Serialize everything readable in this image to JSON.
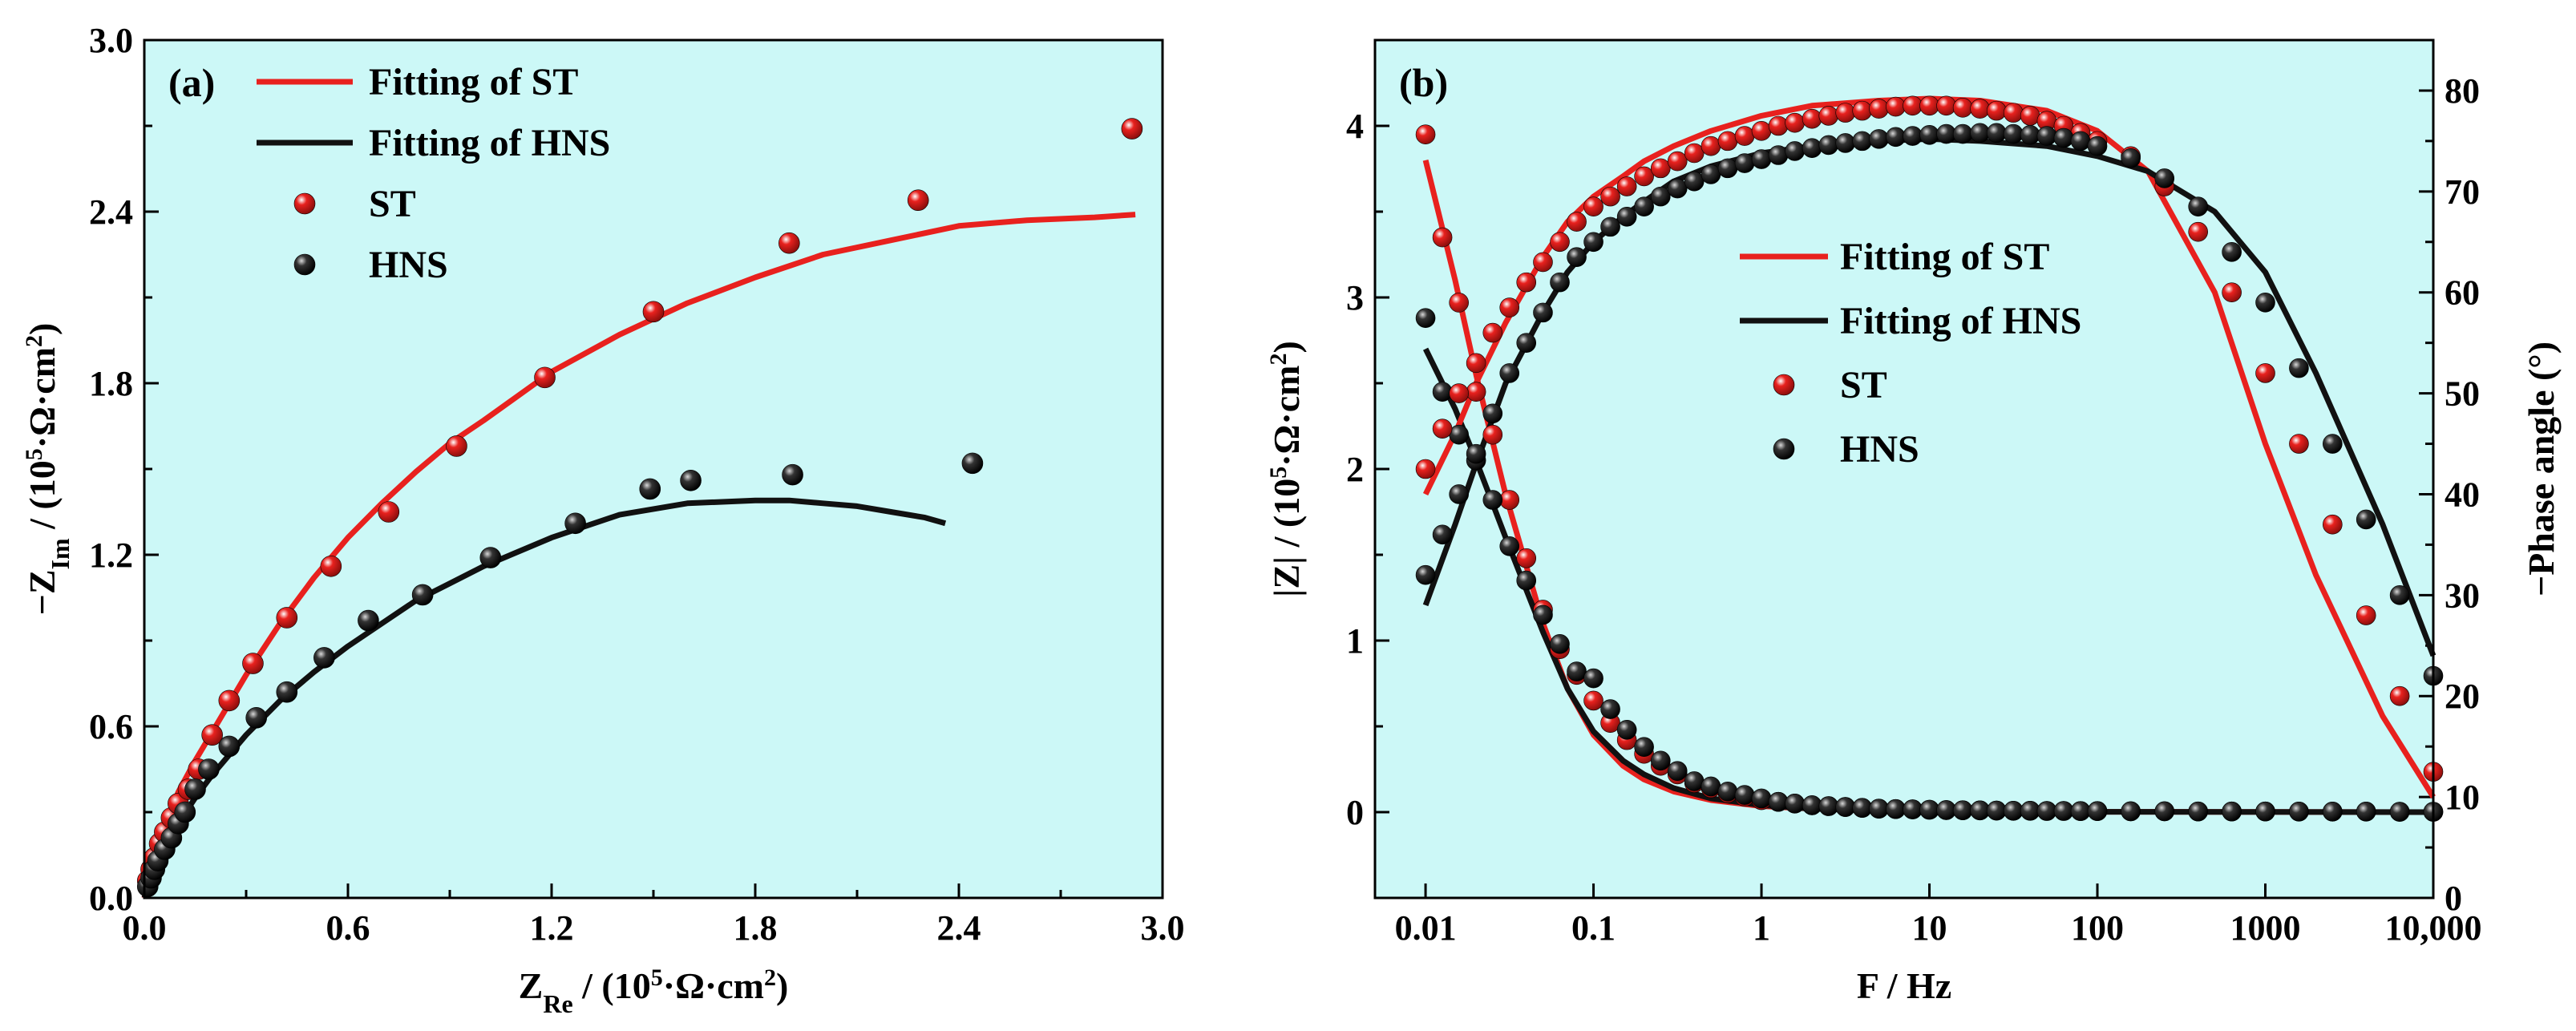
{
  "colors": {
    "plot_background": "#ccf8f7",
    "st": "#e8211e",
    "hns": "#111111",
    "axis": "#000000"
  },
  "chart_data": [
    {
      "panel": "(a)",
      "type": "scatter",
      "title": "",
      "xlabel": {
        "main": "Z",
        "sub": "Re",
        "rest": " / (10",
        "sup": "5",
        "tail": "·Ω·cm",
        "sup2": "2",
        "end": ")"
      },
      "ylabel": {
        "main": "−Z",
        "sub": "Im",
        "rest": " / (10",
        "sup": "5",
        "tail": "·Ω·cm",
        "sup2": "2",
        "end": ")"
      },
      "xlim": [
        0,
        3.0
      ],
      "ylim": [
        0,
        3.0
      ],
      "xticks": [
        0.0,
        0.6,
        1.2,
        1.8,
        2.4,
        3.0
      ],
      "xtick_labels": [
        "0.0",
        "0.6",
        "1.2",
        "1.8",
        "2.4",
        "3.0"
      ],
      "yticks": [
        0.0,
        0.6,
        1.2,
        1.8,
        2.4,
        3.0
      ],
      "ytick_labels": [
        "0.0",
        "0.6",
        "1.2",
        "1.8",
        "2.4",
        "3.0"
      ],
      "legend": {
        "position": "top-left",
        "entries": [
          {
            "label": "Fitting of ST",
            "kind": "line",
            "color_key": "st"
          },
          {
            "label": "Fitting of HNS",
            "kind": "line",
            "color_key": "hns"
          },
          {
            "label": "ST",
            "kind": "marker",
            "color_key": "st"
          },
          {
            "label": "HNS",
            "kind": "marker",
            "color_key": "hns"
          }
        ]
      },
      "series": [
        {
          "name": "Fitting of ST",
          "kind": "line",
          "color_key": "st",
          "x": [
            0,
            0.02,
            0.05,
            0.1,
            0.15,
            0.2,
            0.3,
            0.4,
            0.5,
            0.6,
            0.7,
            0.8,
            0.9,
            1.0,
            1.2,
            1.4,
            1.6,
            1.8,
            2.0,
            2.2,
            2.4,
            2.6,
            2.8,
            2.92
          ],
          "y": [
            0,
            0.1,
            0.22,
            0.37,
            0.48,
            0.58,
            0.78,
            0.96,
            1.12,
            1.26,
            1.38,
            1.49,
            1.59,
            1.67,
            1.84,
            1.97,
            2.08,
            2.17,
            2.25,
            2.3,
            2.35,
            2.37,
            2.38,
            2.39
          ]
        },
        {
          "name": "Fitting of HNS",
          "kind": "line",
          "color_key": "hns",
          "x": [
            0,
            0.02,
            0.05,
            0.1,
            0.15,
            0.2,
            0.3,
            0.4,
            0.5,
            0.6,
            0.7,
            0.8,
            0.9,
            1.0,
            1.2,
            1.4,
            1.6,
            1.8,
            1.9,
            2.0,
            2.1,
            2.2,
            2.3,
            2.36
          ],
          "y": [
            0,
            0.07,
            0.15,
            0.26,
            0.35,
            0.43,
            0.57,
            0.69,
            0.79,
            0.88,
            0.96,
            1.04,
            1.1,
            1.16,
            1.26,
            1.34,
            1.38,
            1.39,
            1.39,
            1.38,
            1.37,
            1.35,
            1.33,
            1.31
          ]
        },
        {
          "name": "ST",
          "kind": "marker",
          "color_key": "st",
          "x": [
            0.01,
            0.02,
            0.03,
            0.045,
            0.06,
            0.08,
            0.1,
            0.13,
            0.16,
            0.2,
            0.25,
            0.32,
            0.42,
            0.55,
            0.72,
            0.92,
            1.18,
            1.5,
            1.9,
            2.28,
            2.91
          ],
          "y": [
            0.06,
            0.1,
            0.14,
            0.19,
            0.23,
            0.28,
            0.33,
            0.38,
            0.45,
            0.57,
            0.69,
            0.82,
            0.98,
            1.16,
            1.35,
            1.58,
            1.82,
            2.05,
            2.29,
            2.44,
            2.69
          ]
        },
        {
          "name": "HNS",
          "kind": "marker",
          "color_key": "hns",
          "x": [
            0.01,
            0.02,
            0.03,
            0.04,
            0.06,
            0.08,
            0.1,
            0.12,
            0.15,
            0.19,
            0.25,
            0.33,
            0.42,
            0.53,
            0.66,
            0.82,
            1.02,
            1.27,
            1.49,
            1.61,
            1.91,
            2.44
          ],
          "y": [
            0.04,
            0.07,
            0.1,
            0.13,
            0.17,
            0.21,
            0.26,
            0.3,
            0.38,
            0.45,
            0.53,
            0.63,
            0.72,
            0.84,
            0.97,
            1.06,
            1.19,
            1.31,
            1.43,
            1.46,
            1.48,
            1.52
          ]
        }
      ]
    },
    {
      "panel": "(b)",
      "type": "scatter",
      "title": "",
      "xlabel": "F / Hz",
      "ylabel_left": {
        "main": "|Z| / (10",
        "sup": "5",
        "tail": "·Ω·cm",
        "sup2": "2",
        "end": ")"
      },
      "ylabel_right": "−Phase angle (°)",
      "xscale": "log",
      "xlim": [
        0.005,
        10000
      ],
      "ylim_left": [
        -0.5,
        4.5
      ],
      "ylim_right": [
        0,
        85
      ],
      "xticks": [
        0.01,
        0.1,
        1,
        10,
        100,
        1000,
        10000
      ],
      "xtick_labels": [
        "0.01",
        "0.1",
        "1",
        "10",
        "100",
        "1000",
        "10,000"
      ],
      "yticks_left": [
        0,
        1,
        2,
        3,
        4
      ],
      "ytick_labels_left": [
        "0",
        "1",
        "2",
        "3",
        "4"
      ],
      "yticks_right": [
        0,
        10,
        20,
        30,
        40,
        50,
        60,
        70,
        80
      ],
      "ytick_labels_right": [
        "0",
        "10",
        "20",
        "30",
        "40",
        "50",
        "60",
        "70",
        "80"
      ],
      "legend": {
        "position": "center",
        "entries": [
          {
            "label": "Fitting of ST",
            "kind": "line",
            "color_key": "st"
          },
          {
            "label": "Fitting of HNS",
            "kind": "line",
            "color_key": "hns"
          },
          {
            "label": "ST",
            "kind": "marker",
            "color_key": "st"
          },
          {
            "label": "HNS",
            "kind": "marker",
            "color_key": "hns"
          }
        ]
      },
      "series": [
        {
          "name": "Fitting of ST |Z|",
          "kind": "line",
          "axis": "left",
          "color_key": "st",
          "x": [
            0.01,
            0.015,
            0.02,
            0.03,
            0.05,
            0.07,
            0.1,
            0.15,
            0.2,
            0.3,
            0.5,
            1,
            2,
            5,
            10,
            100,
            1000,
            10000
          ],
          "y": [
            3.8,
            3.1,
            2.55,
            1.85,
            1.1,
            0.72,
            0.45,
            0.27,
            0.19,
            0.12,
            0.07,
            0.035,
            0.02,
            0.01,
            0.005,
            0.002,
            0.001,
            0.0
          ]
        },
        {
          "name": "Fitting of HNS |Z|",
          "kind": "line",
          "axis": "left",
          "color_key": "hns",
          "x": [
            0.01,
            0.015,
            0.02,
            0.03,
            0.05,
            0.07,
            0.1,
            0.15,
            0.2,
            0.3,
            0.5,
            1,
            2,
            5,
            10,
            100,
            1000,
            10000
          ],
          "y": [
            2.7,
            2.35,
            2.05,
            1.6,
            1.05,
            0.72,
            0.47,
            0.3,
            0.22,
            0.14,
            0.08,
            0.04,
            0.02,
            0.01,
            0.005,
            0.002,
            0.001,
            0.0
          ]
        },
        {
          "name": "ST |Z|",
          "kind": "marker",
          "axis": "left",
          "color_key": "st",
          "x": [
            0.01,
            0.0126,
            0.0158,
            0.02,
            0.0251,
            0.0316,
            0.0398,
            0.05,
            0.063,
            0.0794,
            0.1,
            0.126,
            0.158,
            0.2,
            0.251,
            0.316,
            0.398,
            0.5,
            0.63,
            0.794,
            1,
            1.26,
            1.58,
            2,
            2.51,
            3.16,
            3.98,
            5,
            6.3,
            7.94,
            10,
            12.6,
            15.8,
            20,
            25.1,
            31.6,
            39.8,
            50,
            63,
            79.4,
            100,
            158,
            251,
            398,
            631,
            1000,
            1585,
            2512,
            3981,
            6310,
            10000
          ],
          "y": [
            3.95,
            3.35,
            2.97,
            2.45,
            2.2,
            1.82,
            1.48,
            1.18,
            0.95,
            0.8,
            0.65,
            0.52,
            0.42,
            0.34,
            0.27,
            0.22,
            0.17,
            0.14,
            0.11,
            0.09,
            0.07,
            0.06,
            0.05,
            0.04,
            0.035,
            0.03,
            0.025,
            0.02,
            0.018,
            0.016,
            0.014,
            0.012,
            0.011,
            0.01,
            0.009,
            0.008,
            0.008,
            0.007,
            0.007,
            0.006,
            0.006,
            0.005,
            0.005,
            0.004,
            0.004,
            0.004,
            0.003,
            0.003,
            0.003,
            0.002,
            0.002
          ]
        },
        {
          "name": "HNS |Z|",
          "kind": "marker",
          "axis": "left",
          "color_key": "hns",
          "x": [
            0.01,
            0.0126,
            0.0158,
            0.02,
            0.0251,
            0.0316,
            0.0398,
            0.05,
            0.063,
            0.0794,
            0.1,
            0.126,
            0.158,
            0.2,
            0.251,
            0.316,
            0.398,
            0.5,
            0.63,
            0.794,
            1,
            1.26,
            1.58,
            2,
            2.51,
            3.16,
            3.98,
            5,
            6.3,
            7.94,
            10,
            12.6,
            15.8,
            20,
            25.1,
            31.6,
            39.8,
            50,
            63,
            79.4,
            100,
            158,
            251,
            398,
            631,
            1000,
            1585,
            2512,
            3981,
            6310,
            10000
          ],
          "y": [
            2.88,
            2.45,
            2.2,
            2.05,
            1.82,
            1.55,
            1.35,
            1.15,
            0.98,
            0.82,
            0.78,
            0.6,
            0.48,
            0.38,
            0.3,
            0.24,
            0.18,
            0.15,
            0.12,
            0.1,
            0.08,
            0.06,
            0.05,
            0.04,
            0.035,
            0.03,
            0.025,
            0.02,
            0.018,
            0.016,
            0.014,
            0.012,
            0.011,
            0.01,
            0.009,
            0.008,
            0.008,
            0.007,
            0.007,
            0.006,
            0.006,
            0.005,
            0.005,
            0.004,
            0.004,
            0.004,
            0.003,
            0.003,
            0.003,
            0.002,
            0.002
          ]
        },
        {
          "name": "Fitting of ST phase",
          "kind": "line",
          "axis": "right",
          "color_key": "st",
          "x": [
            0.01,
            0.015,
            0.02,
            0.03,
            0.05,
            0.07,
            0.1,
            0.15,
            0.2,
            0.3,
            0.5,
            1,
            2,
            5,
            10,
            20,
            50,
            100,
            200,
            500,
            1000,
            2000,
            5000,
            10000
          ],
          "y": [
            40,
            46,
            51,
            57,
            63.5,
            67,
            69.5,
            71.5,
            73,
            74.5,
            76,
            77.5,
            78.5,
            79,
            79.2,
            79,
            78,
            76,
            72,
            60,
            45,
            32,
            18,
            10
          ]
        },
        {
          "name": "Fitting of HNS phase",
          "kind": "line",
          "axis": "right",
          "color_key": "hns",
          "x": [
            0.01,
            0.015,
            0.02,
            0.03,
            0.05,
            0.07,
            0.1,
            0.15,
            0.2,
            0.3,
            0.5,
            1,
            2,
            5,
            10,
            20,
            50,
            100,
            200,
            500,
            1000,
            2000,
            5000,
            10000
          ],
          "y": [
            29,
            37,
            43,
            51,
            58,
            62,
            65,
            67.5,
            69,
            71,
            72.5,
            73.8,
            74.5,
            75,
            75.2,
            75,
            74.5,
            73.5,
            72,
            68,
            62,
            52,
            37,
            24
          ]
        },
        {
          "name": "ST phase",
          "kind": "marker",
          "axis": "right",
          "color_key": "st",
          "x": [
            0.01,
            0.0126,
            0.0158,
            0.02,
            0.0251,
            0.0316,
            0.0398,
            0.05,
            0.063,
            0.0794,
            0.1,
            0.126,
            0.158,
            0.2,
            0.251,
            0.316,
            0.398,
            0.5,
            0.63,
            0.794,
            1,
            1.26,
            1.58,
            2,
            2.51,
            3.16,
            3.98,
            5,
            6.3,
            7.94,
            10,
            12.6,
            15.8,
            20,
            25.1,
            31.6,
            39.8,
            50,
            63,
            79.4,
            100,
            158,
            251,
            398,
            631,
            1000,
            1585,
            2512,
            3981,
            6310,
            10000
          ],
          "y": [
            42.5,
            46.5,
            50,
            53,
            56,
            58.5,
            61,
            63,
            65,
            67,
            68.5,
            69.5,
            70.5,
            71.5,
            72.3,
            73,
            73.8,
            74.5,
            75,
            75.5,
            76,
            76.5,
            76.8,
            77.2,
            77.5,
            77.8,
            78,
            78.2,
            78.4,
            78.5,
            78.5,
            78.5,
            78.3,
            78.2,
            78,
            77.8,
            77.5,
            77,
            76.5,
            75.8,
            75,
            73.5,
            70.5,
            66,
            60,
            52,
            45,
            37,
            28,
            20,
            12.5
          ]
        },
        {
          "name": "HNS phase",
          "kind": "marker",
          "axis": "right",
          "color_key": "hns",
          "x": [
            0.01,
            0.0126,
            0.0158,
            0.02,
            0.0251,
            0.0316,
            0.0398,
            0.05,
            0.063,
            0.0794,
            0.1,
            0.126,
            0.158,
            0.2,
            0.251,
            0.316,
            0.398,
            0.5,
            0.63,
            0.794,
            1,
            1.26,
            1.58,
            2,
            2.51,
            3.16,
            3.98,
            5,
            6.3,
            7.94,
            10,
            12.6,
            15.8,
            20,
            25.1,
            31.6,
            39.8,
            50,
            63,
            79.4,
            100,
            158,
            251,
            398,
            631,
            1000,
            1585,
            2512,
            3981,
            6310,
            10000
          ],
          "y": [
            32,
            36,
            40,
            44,
            48,
            52,
            55,
            58,
            61,
            63.5,
            65,
            66.5,
            67.5,
            68.5,
            69.5,
            70.3,
            71,
            71.7,
            72.3,
            72.8,
            73.2,
            73.6,
            74,
            74.3,
            74.6,
            74.8,
            75,
            75.2,
            75.4,
            75.5,
            75.6,
            75.7,
            75.7,
            75.8,
            75.8,
            75.7,
            75.6,
            75.5,
            75.3,
            75,
            74.5,
            73.3,
            71.3,
            68.5,
            64,
            59,
            52.5,
            45,
            37.5,
            30,
            22
          ]
        }
      ]
    }
  ]
}
